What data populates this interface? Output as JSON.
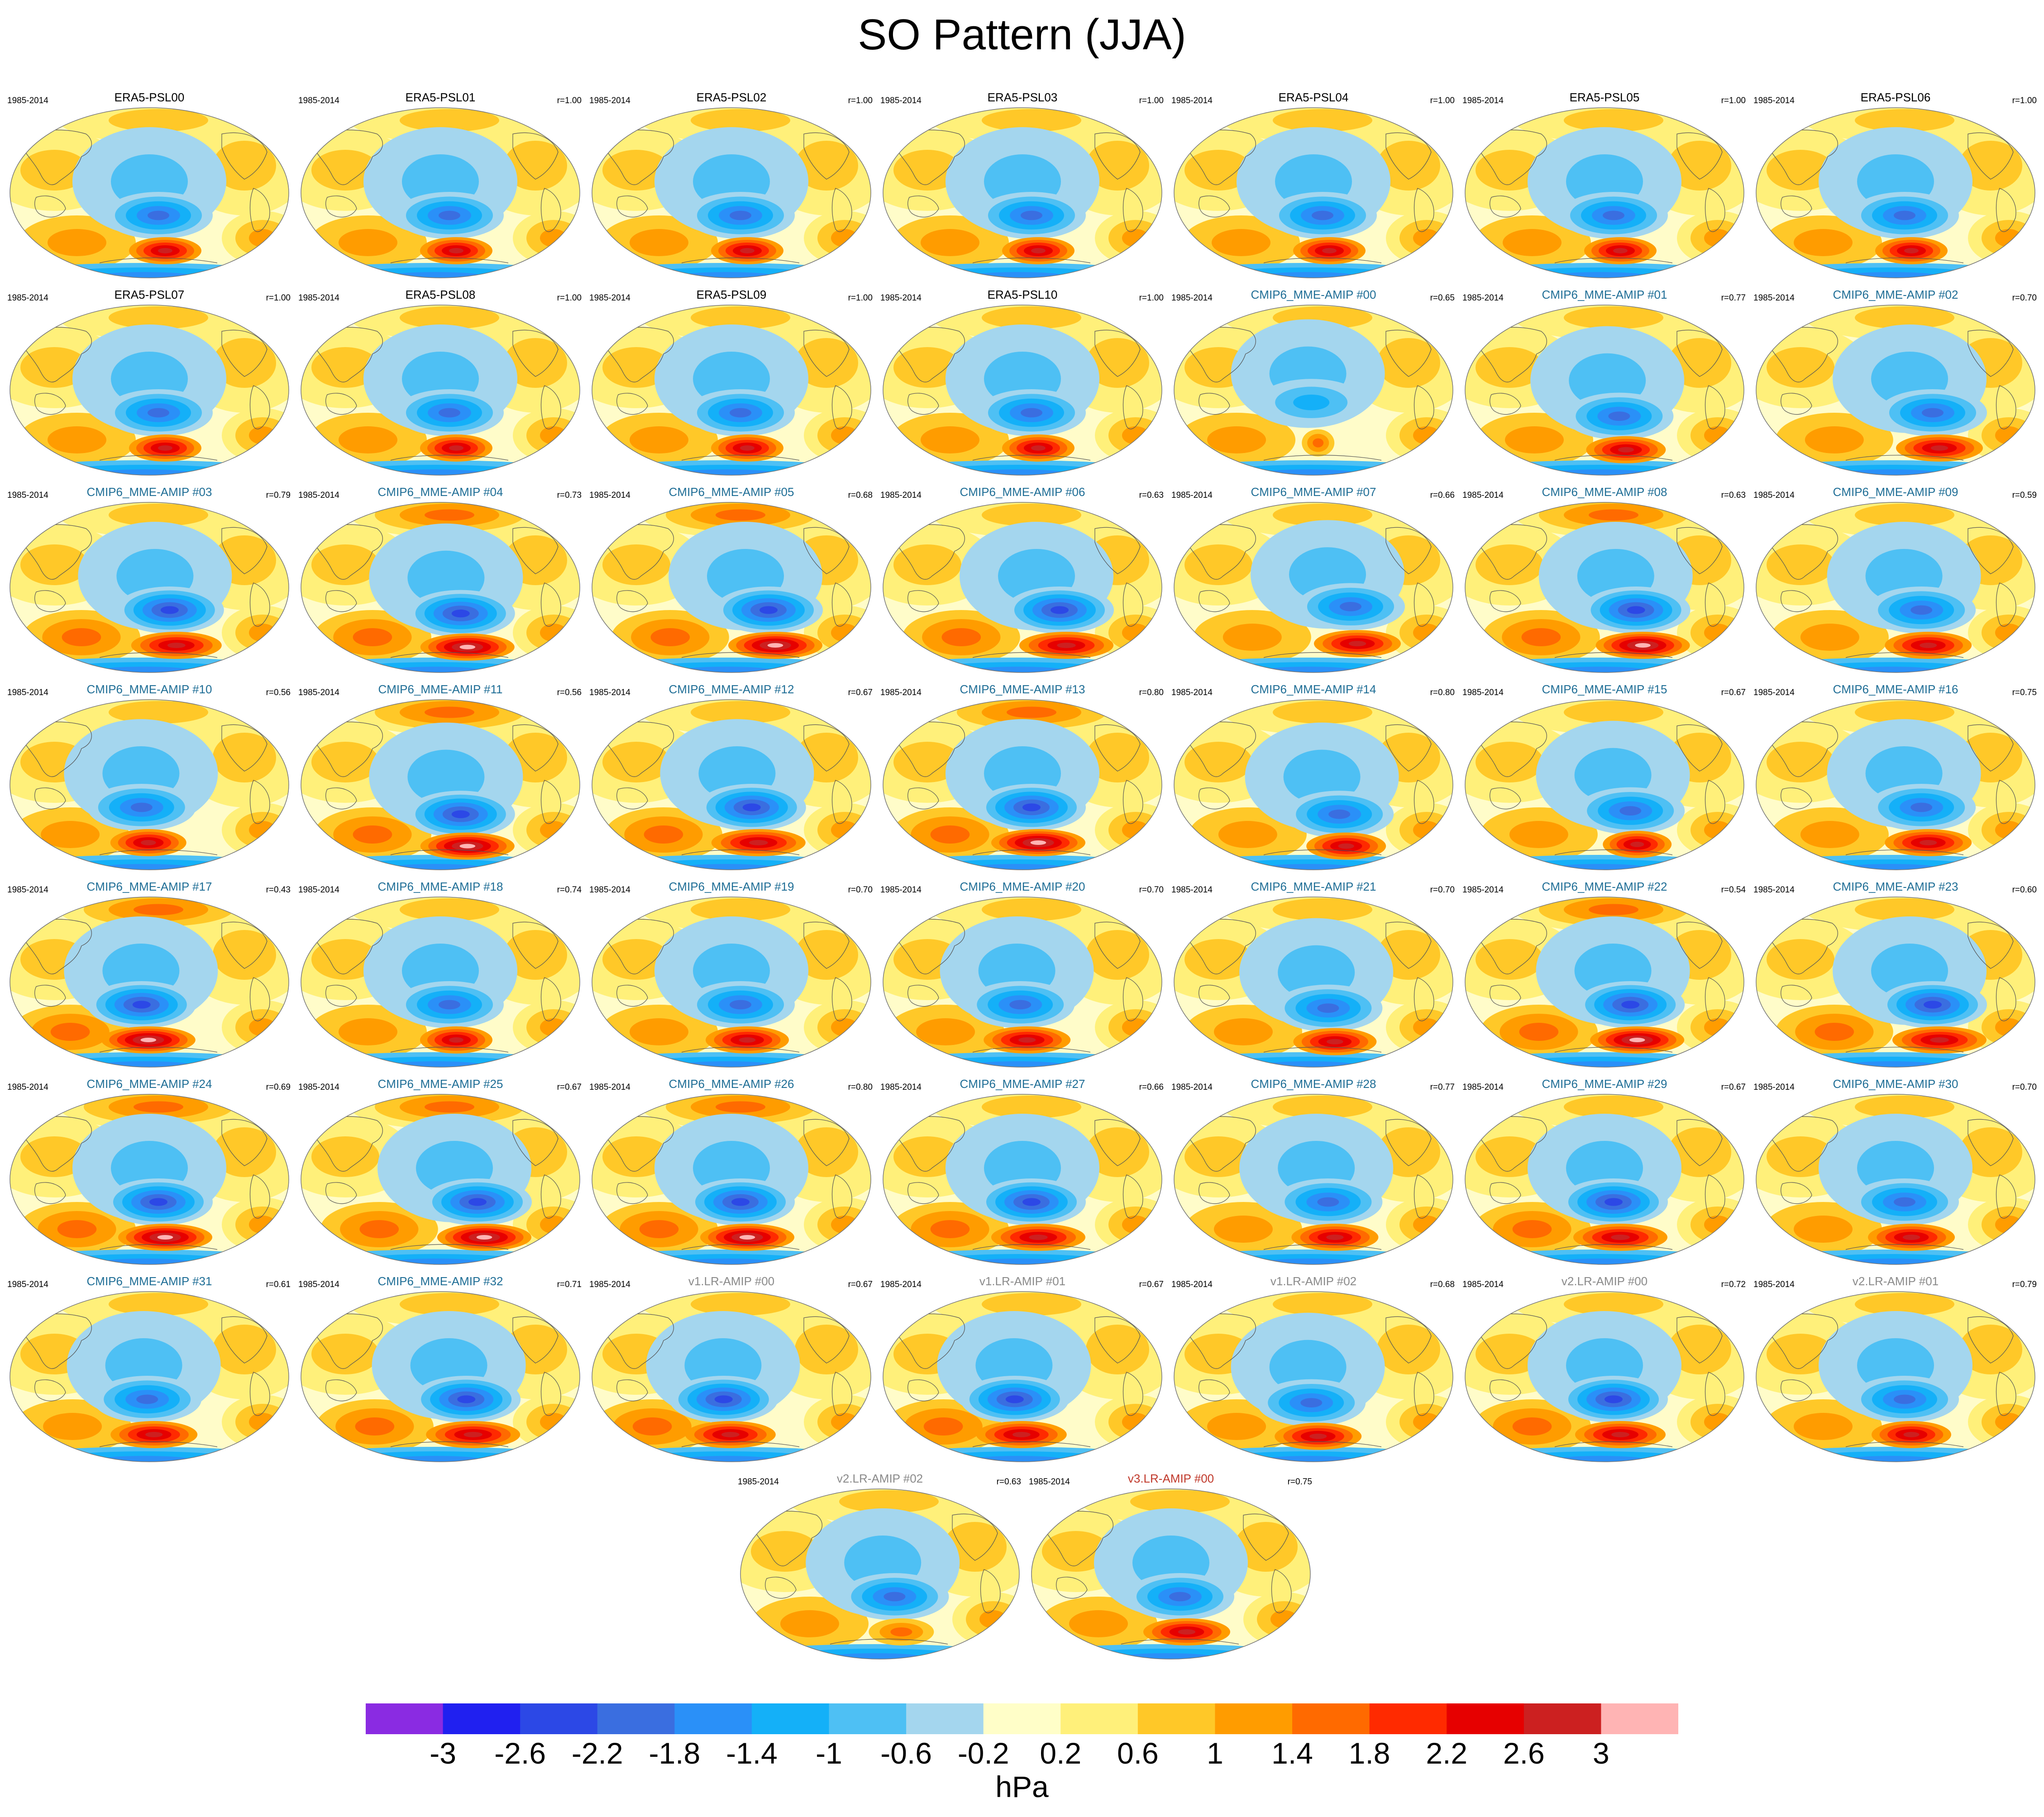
{
  "title": "SO Pattern (JJA)",
  "units": "hPa",
  "period": "1985-2014",
  "colors": {
    "era5_title": "#000000",
    "cmip6_title": "#1f6e96",
    "v1_title": "#8a8a8a",
    "v2_title": "#8a8a8a",
    "v3_title": "#c0392b",
    "ocean_background": "#fffcc9",
    "coastline": "#555555"
  },
  "colorbar": {
    "colors": [
      "#8a2be2",
      "#2020f0",
      "#2c48e6",
      "#3a6ee0",
      "#2a90f8",
      "#14b0f8",
      "#4ec0f4",
      "#a4d6ee",
      "#fffec8",
      "#fff07a",
      "#ffc828",
      "#ff9c00",
      "#ff6a00",
      "#ff2a00",
      "#e60000",
      "#cc2020",
      "#ffb4b4"
    ],
    "tick_labels": [
      "-3",
      "-2.6",
      "-2.2",
      "-1.8",
      "-1.4",
      "-1",
      "-0.6",
      "-0.2",
      "0.2",
      "0.6",
      "1",
      "1.4",
      "1.8",
      "2.2",
      "2.6",
      "3"
    ]
  },
  "panels": [
    {
      "title": "ERA5-PSL00",
      "r": "",
      "group": "era5",
      "strength": 1.0,
      "dx": 0.0,
      "dy": 0.0
    },
    {
      "title": "ERA5-PSL01",
      "r": "r=1.00",
      "group": "era5",
      "strength": 1.0,
      "dx": 0.0,
      "dy": 0.0
    },
    {
      "title": "ERA5-PSL02",
      "r": "r=1.00",
      "group": "era5",
      "strength": 1.0,
      "dx": 0.0,
      "dy": 0.0
    },
    {
      "title": "ERA5-PSL03",
      "r": "r=1.00",
      "group": "era5",
      "strength": 1.0,
      "dx": 0.0,
      "dy": 0.0
    },
    {
      "title": "ERA5-PSL04",
      "r": "r=1.00",
      "group": "era5",
      "strength": 1.0,
      "dx": 0.0,
      "dy": 0.0
    },
    {
      "title": "ERA5-PSL05",
      "r": "r=1.00",
      "group": "era5",
      "strength": 1.0,
      "dx": 0.0,
      "dy": 0.0
    },
    {
      "title": "ERA5-PSL06",
      "r": "r=1.00",
      "group": "era5",
      "strength": 1.0,
      "dx": 0.0,
      "dy": 0.0
    },
    {
      "title": "ERA5-PSL07",
      "r": "r=1.00",
      "group": "era5",
      "strength": 1.0,
      "dx": 0.0,
      "dy": 0.0
    },
    {
      "title": "ERA5-PSL08",
      "r": "r=1.00",
      "group": "era5",
      "strength": 1.0,
      "dx": 0.0,
      "dy": 0.0
    },
    {
      "title": "ERA5-PSL09",
      "r": "r=1.00",
      "group": "era5",
      "strength": 1.0,
      "dx": 0.0,
      "dy": 0.0
    },
    {
      "title": "ERA5-PSL10",
      "r": "r=1.00",
      "group": "era5",
      "strength": 1.0,
      "dx": 0.0,
      "dy": 0.0
    },
    {
      "title": "CMIP6_MME-AMIP  #00",
      "r": "r=0.65",
      "group": "cmip6",
      "strength": 0.45,
      "dx": -0.04,
      "dy": -0.06
    },
    {
      "title": "CMIP6_MME-AMIP  #01",
      "r": "r=0.77",
      "group": "cmip6",
      "strength": 1.1,
      "dx": 0.02,
      "dy": 0.02
    },
    {
      "title": "CMIP6_MME-AMIP  #02",
      "r": "r=0.70",
      "group": "cmip6",
      "strength": 1.2,
      "dx": 0.1,
      "dy": 0.0
    },
    {
      "title": "CMIP6_MME-AMIP  #03",
      "r": "r=0.79",
      "group": "cmip6",
      "strength": 1.25,
      "dx": 0.04,
      "dy": 0.0
    },
    {
      "title": "CMIP6_MME-AMIP  #04",
      "r": "r=0.73",
      "group": "cmip6",
      "strength": 1.4,
      "dx": 0.04,
      "dy": 0.02
    },
    {
      "title": "CMIP6_MME-AMIP  #05",
      "r": "r=0.68",
      "group": "cmip6",
      "strength": 1.4,
      "dx": 0.1,
      "dy": 0.0
    },
    {
      "title": "CMIP6_MME-AMIP  #06",
      "r": "r=0.63",
      "group": "cmip6",
      "strength": 1.3,
      "dx": 0.1,
      "dy": 0.0
    },
    {
      "title": "CMIP6_MME-AMIP  #07",
      "r": "r=0.66",
      "group": "cmip6",
      "strength": 1.2,
      "dx": 0.1,
      "dy": -0.02
    },
    {
      "title": "CMIP6_MME-AMIP  #08",
      "r": "r=0.63",
      "group": "cmip6",
      "strength": 1.4,
      "dx": 0.08,
      "dy": 0.0
    },
    {
      "title": "CMIP6_MME-AMIP  #09",
      "r": "r=0.59",
      "group": "cmip6",
      "strength": 1.2,
      "dx": 0.06,
      "dy": 0.0
    },
    {
      "title": "CMIP6_MME-AMIP  #10",
      "r": "r=0.56",
      "group": "cmip6",
      "strength": 1.05,
      "dx": -0.06,
      "dy": 0.0
    },
    {
      "title": "CMIP6_MME-AMIP  #11",
      "r": "r=0.56",
      "group": "cmip6",
      "strength": 1.4,
      "dx": 0.04,
      "dy": 0.04
    },
    {
      "title": "CMIP6_MME-AMIP  #12",
      "r": "r=0.67",
      "group": "cmip6",
      "strength": 1.3,
      "dx": 0.04,
      "dy": 0.0
    },
    {
      "title": "CMIP6_MME-AMIP  #13",
      "r": "r=0.80",
      "group": "cmip6",
      "strength": 1.45,
      "dx": 0.0,
      "dy": 0.0
    },
    {
      "title": "CMIP6_MME-AMIP  #14",
      "r": "r=0.80",
      "group": "cmip6",
      "strength": 1.1,
      "dx": 0.06,
      "dy": 0.04
    },
    {
      "title": "CMIP6_MME-AMIP  #15",
      "r": "r=0.67",
      "group": "cmip6",
      "strength": 0.95,
      "dx": 0.06,
      "dy": 0.02
    },
    {
      "title": "CMIP6_MME-AMIP  #16",
      "r": "r=0.75",
      "group": "cmip6",
      "strength": 1.2,
      "dx": 0.06,
      "dy": 0.0
    },
    {
      "title": "CMIP6_MME-AMIP  #17",
      "r": "r=0.43",
      "group": "cmip6",
      "strength": 1.45,
      "dx": -0.06,
      "dy": 0.0
    },
    {
      "title": "CMIP6_MME-AMIP  #18",
      "r": "r=0.74",
      "group": "cmip6",
      "strength": 1.0,
      "dx": 0.0,
      "dy": 0.0
    },
    {
      "title": "CMIP6_MME-AMIP  #19",
      "r": "r=0.70",
      "group": "cmip6",
      "strength": 1.15,
      "dx": 0.0,
      "dy": 0.0
    },
    {
      "title": "CMIP6_MME-AMIP  #20",
      "r": "r=0.70",
      "group": "cmip6",
      "strength": 1.2,
      "dx": -0.04,
      "dy": 0.0
    },
    {
      "title": "CMIP6_MME-AMIP  #21",
      "r": "r=0.70",
      "group": "cmip6",
      "strength": 1.15,
      "dx": 0.02,
      "dy": 0.02
    },
    {
      "title": "CMIP6_MME-AMIP  #22",
      "r": "r=0.54",
      "group": "cmip6",
      "strength": 1.45,
      "dx": 0.06,
      "dy": 0.0
    },
    {
      "title": "CMIP6_MME-AMIP  #23",
      "r": "r=0.60",
      "group": "cmip6",
      "strength": 1.3,
      "dx": 0.1,
      "dy": 0.0
    },
    {
      "title": "CMIP6_MME-AMIP  #24",
      "r": "r=0.69",
      "group": "cmip6",
      "strength": 1.45,
      "dx": 0.0,
      "dy": 0.0
    },
    {
      "title": "CMIP6_MME-AMIP  #25",
      "r": "r=0.67",
      "group": "cmip6",
      "strength": 1.5,
      "dx": 0.1,
      "dy": 0.0
    },
    {
      "title": "CMIP6_MME-AMIP  #26",
      "r": "r=0.80",
      "group": "cmip6",
      "strength": 1.45,
      "dx": 0.0,
      "dy": 0.0
    },
    {
      "title": "CMIP6_MME-AMIP  #27",
      "r": "r=0.66",
      "group": "cmip6",
      "strength": 1.3,
      "dx": 0.0,
      "dy": 0.0
    },
    {
      "title": "CMIP6_MME-AMIP  #28",
      "r": "r=0.77",
      "group": "cmip6",
      "strength": 1.2,
      "dx": 0.02,
      "dy": 0.0
    },
    {
      "title": "CMIP6_MME-AMIP  #29",
      "r": "r=0.67",
      "group": "cmip6",
      "strength": 1.3,
      "dx": 0.0,
      "dy": 0.0
    },
    {
      "title": "CMIP6_MME-AMIP  #30",
      "r": "r=0.70",
      "group": "cmip6",
      "strength": 1.2,
      "dx": 0.0,
      "dy": 0.0
    },
    {
      "title": "CMIP6_MME-AMIP  #31",
      "r": "r=0.61",
      "group": "cmip6",
      "strength": 1.2,
      "dx": -0.04,
      "dy": 0.0
    },
    {
      "title": "CMIP6_MME-AMIP  #32",
      "r": "r=0.71",
      "group": "cmip6",
      "strength": 1.3,
      "dx": 0.06,
      "dy": 0.0
    },
    {
      "title": "v1.LR-AMIP  #00",
      "r": "r=0.67",
      "group": "v1",
      "strength": 1.25,
      "dx": -0.06,
      "dy": 0.0
    },
    {
      "title": "v1.LR-AMIP  #01",
      "r": "r=0.67",
      "group": "v1",
      "strength": 1.25,
      "dx": -0.06,
      "dy": 0.0
    },
    {
      "title": "v1.LR-AMIP  #02",
      "r": "r=0.68",
      "group": "v1",
      "strength": 1.2,
      "dx": -0.04,
      "dy": 0.02
    },
    {
      "title": "v2.LR-AMIP  #00",
      "r": "r=0.72",
      "group": "v2",
      "strength": 1.25,
      "dx": 0.0,
      "dy": 0.0
    },
    {
      "title": "v2.LR-AMIP  #01",
      "r": "r=0.79",
      "group": "v2",
      "strength": 1.1,
      "dx": 0.0,
      "dy": 0.0
    },
    {
      "title": "v2.LR-AMIP  #02",
      "r": "r=0.63",
      "group": "v2",
      "strength": 0.9,
      "dx": 0.02,
      "dy": 0.0
    },
    {
      "title": "v3.LR-AMIP  #00",
      "r": "r=0.75",
      "group": "v3",
      "strength": 1.2,
      "dx": 0.0,
      "dy": 0.0
    }
  ]
}
